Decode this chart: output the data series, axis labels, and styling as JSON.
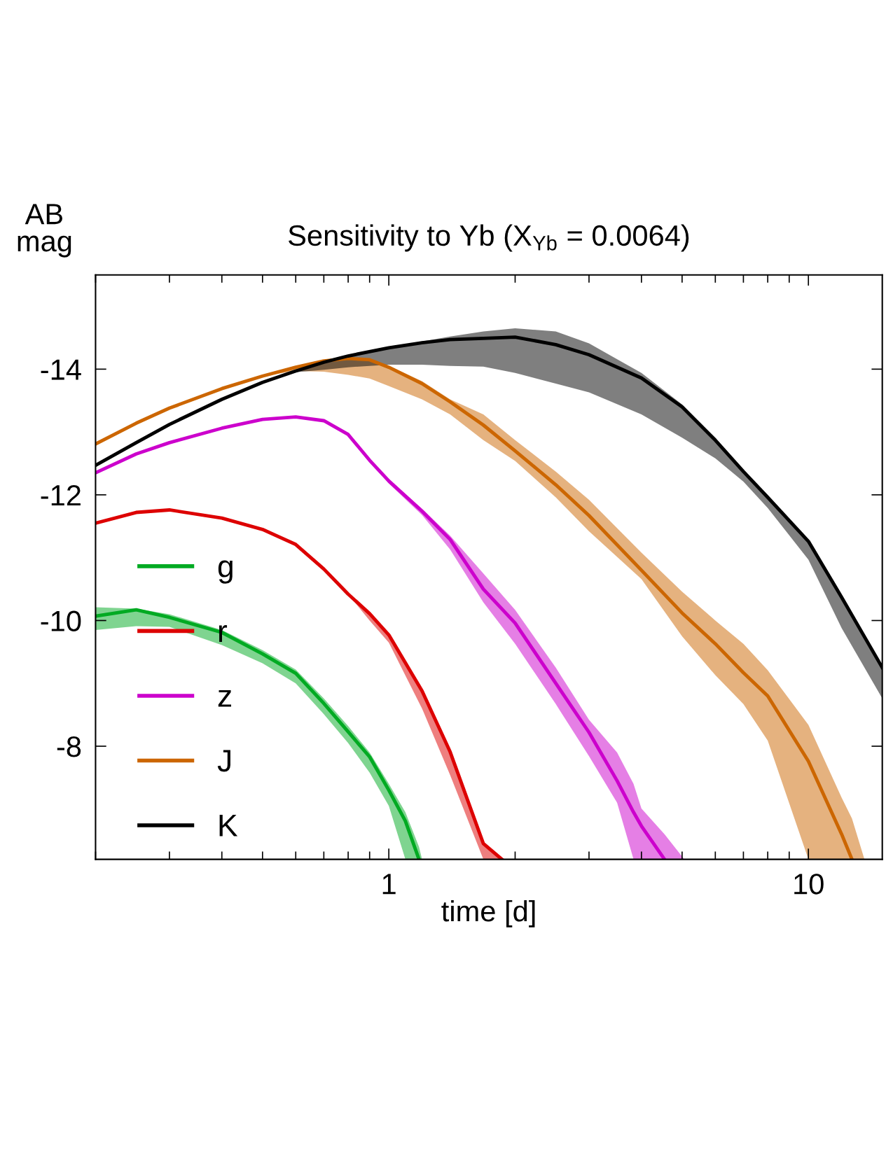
{
  "chart_data": {
    "type": "line",
    "title": "Sensitivity to Yb (X$_{Yb}$ = 0.0064)",
    "xlabel": "time [d]",
    "ylabel": "AB\nmag",
    "log": "x",
    "xlim": [
      0.2,
      15
    ],
    "xticks": [
      1,
      10
    ],
    "ylim": [
      -6.2,
      -15.5
    ],
    "yticks": [
      -14,
      -12,
      -10,
      -8
    ],
    "grid": false,
    "legend": "center left",
    "line_style": "solid",
    "marker": "none",
    "series": [
      {
        "name": "g",
        "color": "#00aa22",
        "x": [
          0.2,
          0.25,
          0.3,
          0.4,
          0.5,
          0.6,
          0.7,
          0.8,
          0.9,
          1,
          1.095,
          1.18,
          1.2
        ],
        "values": [
          -10.07,
          -10.17,
          -10.05,
          -9.81,
          -9.47,
          -9.16,
          -8.68,
          -8.23,
          -7.83,
          -7.3,
          -6.81,
          -6.2,
          null
        ],
        "lower": [
          -10.21,
          -10.19,
          -10.1,
          -9.85,
          -9.53,
          -9.22,
          -8.76,
          -8.32,
          -7.9,
          -7.4,
          -6.95,
          -6.4,
          -6.2
        ],
        "upper": [
          -9.85,
          -9.91,
          -9.9,
          -9.61,
          -9.32,
          -9.0,
          -8.51,
          -8.05,
          -7.58,
          -7.05,
          -6.2,
          -6.2,
          -6.2
        ]
      },
      {
        "name": "r",
        "color": "#dd0000",
        "x": [
          0.2,
          0.25,
          0.3,
          0.4,
          0.5,
          0.6,
          0.7,
          0.8,
          0.9,
          1,
          1.2,
          1.4,
          1.68,
          1.86
        ],
        "values": [
          -11.55,
          -11.72,
          -11.76,
          -11.63,
          -11.45,
          -11.21,
          -10.82,
          -10.42,
          -10.11,
          -9.77,
          -8.88,
          -7.91,
          -6.45,
          -6.2
        ],
        "lower": [
          -11.55,
          -11.72,
          -11.76,
          -11.63,
          -11.45,
          -11.21,
          -10.82,
          -10.42,
          -10.11,
          -9.77,
          -8.88,
          -7.91,
          -6.45,
          -6.2
        ],
        "upper": [
          -11.55,
          -11.72,
          -11.76,
          -11.63,
          -11.45,
          -11.21,
          -10.82,
          -10.42,
          -10.0,
          -9.65,
          -8.6,
          -7.54,
          -6.2,
          -6.2
        ]
      },
      {
        "name": "z",
        "color": "#cc00cc",
        "x": [
          0.2,
          0.25,
          0.3,
          0.4,
          0.5,
          0.6,
          0.7,
          0.8,
          0.9,
          1,
          1.2,
          1.4,
          1.68,
          2,
          2.5,
          3,
          3.5,
          3.83,
          4,
          4.54,
          5.06
        ],
        "values": [
          -12.35,
          -12.65,
          -12.83,
          -13.06,
          -13.2,
          -13.24,
          -13.18,
          -12.96,
          -12.55,
          -12.22,
          -11.74,
          -11.29,
          -10.5,
          -9.96,
          -9.0,
          -8.22,
          -7.45,
          -6.95,
          -6.73,
          -6.2,
          null
        ],
        "lower": [
          -12.35,
          -12.65,
          -12.83,
          -13.06,
          -13.2,
          -13.24,
          -13.18,
          -12.96,
          -12.55,
          -12.25,
          -11.78,
          -11.35,
          -10.75,
          -10.17,
          -9.25,
          -8.42,
          -7.9,
          -7.4,
          -7.01,
          -6.6,
          -6.2
        ],
        "upper": [
          -12.35,
          -12.65,
          -12.83,
          -13.06,
          -13.2,
          -13.24,
          -13.18,
          -12.96,
          -12.55,
          -12.18,
          -11.68,
          -11.13,
          -10.29,
          -9.63,
          -8.67,
          -7.84,
          -7.1,
          -6.2,
          -6.2,
          -6.2,
          -6.2
        ]
      },
      {
        "name": "J",
        "color": "#cc6600",
        "x": [
          0.2,
          0.25,
          0.3,
          0.4,
          0.5,
          0.6,
          0.7,
          0.8,
          0.9,
          1,
          1.2,
          1.4,
          1.68,
          2,
          2.5,
          3,
          4,
          5,
          6,
          7,
          8,
          10,
          12,
          12.7,
          13.6
        ],
        "values": [
          -12.81,
          -13.14,
          -13.38,
          -13.69,
          -13.89,
          -14.03,
          -14.13,
          -14.17,
          -14.15,
          -14.03,
          -13.77,
          -13.48,
          -13.11,
          -12.7,
          -12.16,
          -11.67,
          -10.8,
          -10.12,
          -9.63,
          -9.17,
          -8.8,
          -7.76,
          -6.6,
          -6.2,
          null
        ],
        "lower": [
          -12.81,
          -13.14,
          -13.38,
          -13.69,
          -13.89,
          -14.03,
          -14.13,
          -14.17,
          -14.15,
          -14.05,
          -13.81,
          -13.52,
          -13.28,
          -12.87,
          -12.37,
          -11.92,
          -11.08,
          -10.46,
          -10.0,
          -9.63,
          -9.21,
          -8.34,
          -7.18,
          -6.85,
          -6.2
        ],
        "upper": [
          -12.81,
          -13.14,
          -13.38,
          -13.69,
          -13.89,
          -13.97,
          -13.96,
          -13.91,
          -13.85,
          -13.73,
          -13.52,
          -13.28,
          -12.87,
          -12.54,
          -11.96,
          -11.42,
          -10.66,
          -9.75,
          -9.13,
          -8.67,
          -8.09,
          -6.2,
          -6.2,
          -6.2,
          -6.2
        ]
      },
      {
        "name": "K",
        "color": "#000000",
        "x": [
          0.2,
          0.25,
          0.3,
          0.4,
          0.5,
          0.6,
          0.7,
          0.8,
          1,
          1.2,
          1.4,
          1.68,
          2,
          2.5,
          3,
          4,
          5,
          6,
          7,
          8,
          10,
          12,
          15
        ],
        "values": [
          -12.47,
          -12.83,
          -13.12,
          -13.52,
          -13.79,
          -13.97,
          -14.11,
          -14.21,
          -14.34,
          -14.42,
          -14.47,
          -14.49,
          -14.51,
          -14.39,
          -14.23,
          -13.86,
          -13.4,
          -12.87,
          -12.37,
          -11.96,
          -11.26,
          -10.37,
          -9.25
        ],
        "lower": [
          -12.47,
          -12.83,
          -13.12,
          -13.52,
          -13.79,
          -13.97,
          -14.11,
          -14.21,
          -14.34,
          -14.44,
          -14.52,
          -14.6,
          -14.65,
          -14.6,
          -14.41,
          -13.94,
          -13.44,
          -12.87,
          -12.37,
          -11.96,
          -11.26,
          -10.37,
          -9.25
        ],
        "upper": [
          -12.47,
          -12.83,
          -13.12,
          -13.52,
          -13.79,
          -13.95,
          -13.99,
          -14.03,
          -14.07,
          -14.07,
          -14.05,
          -14.04,
          -13.94,
          -13.77,
          -13.63,
          -13.28,
          -12.91,
          -12.58,
          -12.21,
          -11.79,
          -10.97,
          -9.88,
          -8.76
        ]
      }
    ]
  }
}
